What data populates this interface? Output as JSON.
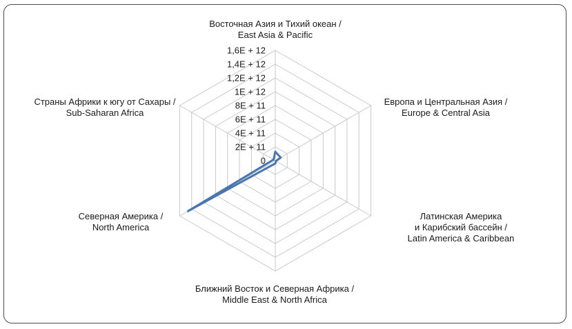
{
  "chart_data": {
    "type": "radar",
    "title": "",
    "categories": [
      [
        "Восточная Азия и Тихий океан /",
        "East Asia & Pacific"
      ],
      [
        "Европа и Центральная Азия /",
        "Europe & Central Asia"
      ],
      [
        "Латинская Америка",
        "и Карибский бассейн /",
        "Latin America & Caribbean"
      ],
      [
        "Ближний Восток и Северная Африка /",
        "Middle East & North Africa"
      ],
      [
        "Северная Америка /",
        "North America"
      ],
      [
        "Страны Африки к югу от Сахары /",
        "Sub-Saharan Africa"
      ]
    ],
    "series": [
      {
        "values": [
          130000000000,
          90000000000,
          10000000000,
          40000000000,
          1460000000000,
          30000000000
        ]
      }
    ],
    "rlim": [
      0,
      1600000000000
    ],
    "r_ticks": [
      0,
      200000000000,
      400000000000,
      600000000000,
      800000000000,
      1000000000000,
      1200000000000,
      1400000000000,
      1600000000000
    ],
    "r_tick_labels": [
      "0",
      "2E + 11",
      "4E + 11",
      "6E + 11",
      "8E + 11",
      "1E + 12",
      "1,2E + 12",
      "1,4E + 12",
      "1,6E + 12"
    ],
    "grid": true,
    "legend": "none",
    "series_color": "#4a76b0",
    "grid_color": "#c8c8c8"
  }
}
